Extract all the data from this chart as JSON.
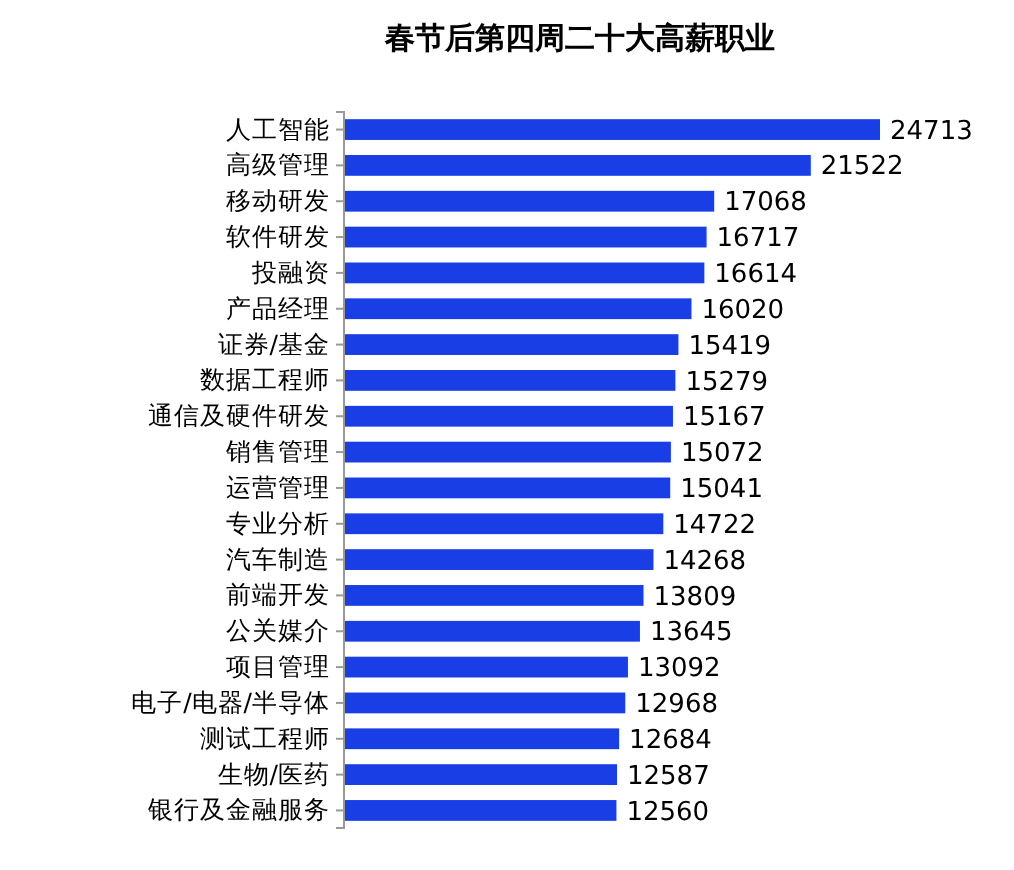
{
  "chart_data": {
    "type": "bar",
    "orientation": "horizontal",
    "title": "春节后第四周二十大高薪职业",
    "categories": [
      "人工智能",
      "高级管理",
      "移动研发",
      "软件研发",
      "投融资",
      "产品经理",
      "证券/基金",
      "数据工程师",
      "通信及硬件研发",
      "销售管理",
      "运营管理",
      "专业分析",
      "汽车制造",
      "前端开发",
      "公关媒介",
      "项目管理",
      "电子/电器/半导体",
      "测试工程师",
      "生物/医药",
      "银行及金融服务"
    ],
    "values": [
      24713,
      21522,
      17068,
      16717,
      16614,
      16020,
      15419,
      15279,
      15167,
      15072,
      15041,
      14722,
      14268,
      13809,
      13645,
      13092,
      12968,
      12684,
      12587,
      12560
    ],
    "color": "#1a3ee6",
    "data_labels": true
  }
}
